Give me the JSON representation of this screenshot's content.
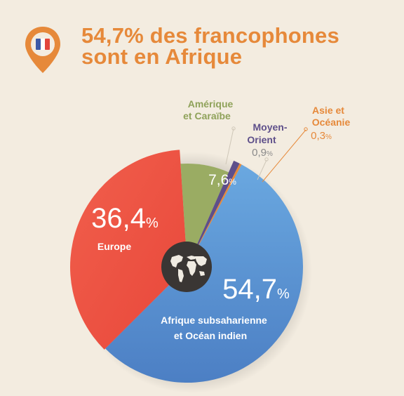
{
  "header": {
    "title_line1": "54,7% des francophones",
    "title_line2": "sont en Afrique",
    "icon": "location-pin-french-flag-icon"
  },
  "center_icon": "world-map-icon",
  "colors": {
    "accent": "#e6893a",
    "afrique": "#5f9ad6",
    "europe": "#ef5443",
    "amerique": "#9aac63",
    "moyen_orient": "#5e4f8a",
    "asie": "#e6893a",
    "background": "#f3ece0"
  },
  "chart_data": {
    "type": "pie",
    "title": "54,7% des francophones sont en Afrique",
    "unit": "%",
    "slices": [
      {
        "name": "Afrique subsaharienne et Océan indien",
        "value": 54.7,
        "value_label": "54,7",
        "color": "#5f9ad6"
      },
      {
        "name": "Europe",
        "value": 36.4,
        "value_label": "36,4",
        "color": "#ef5443"
      },
      {
        "name": "Amérique et Caraïbe",
        "value": 7.6,
        "value_label": "7,6",
        "color": "#9aac63"
      },
      {
        "name": "Moyen-Orient",
        "value": 0.9,
        "value_label": "0,9",
        "color": "#5e4f8a"
      },
      {
        "name": "Asie et Océanie",
        "value": 0.3,
        "value_label": "0,3",
        "color": "#e6893a"
      }
    ],
    "labels": {
      "afrique_line1": "Afrique subsaharienne",
      "afrique_line2": "et Océan indien",
      "europe": "Europe",
      "amerique_line1": "Amérique",
      "amerique_line2": "et Caraïbe",
      "moyen_orient_line1": "Moyen-",
      "moyen_orient_line2": "Orient",
      "asie_line1": "Asie et",
      "asie_line2": "Océanie",
      "percent_sign": "%"
    }
  }
}
